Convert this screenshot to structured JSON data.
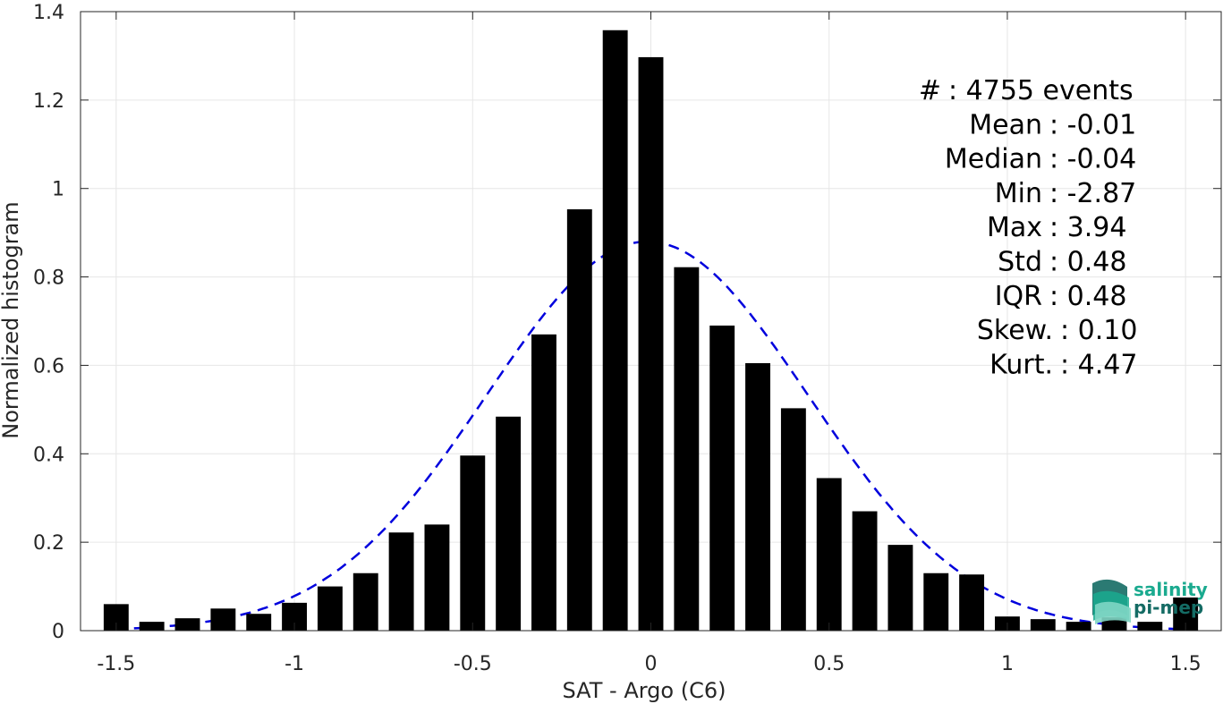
{
  "chart_data": {
    "type": "bar",
    "xlabel": "SAT - Argo (C6)",
    "ylabel": "Normalized histogram",
    "xlim": [
      -1.6,
      1.6
    ],
    "ylim": [
      0,
      1.4
    ],
    "xticks": [
      -1.5,
      -1,
      -0.5,
      0,
      0.5,
      1,
      1.5
    ],
    "xtick_labels": [
      "-1.5",
      "-1",
      "-0.5",
      "0",
      "0.5",
      "1",
      "1.5"
    ],
    "yticks": [
      0,
      0.2,
      0.4,
      0.6,
      0.8,
      1,
      1.2,
      1.4
    ],
    "ytick_labels": [
      "0",
      "0.2",
      "0.4",
      "0.6",
      "0.8",
      "1",
      "1.2",
      "1.4"
    ],
    "grid": true,
    "bin_width": 0.1,
    "bar_width": 0.07,
    "x": [
      -1.5,
      -1.4,
      -1.3,
      -1.2,
      -1.1,
      -1.0,
      -0.9,
      -0.8,
      -0.7,
      -0.6,
      -0.5,
      -0.4,
      -0.3,
      -0.2,
      -0.1,
      0.0,
      0.1,
      0.2,
      0.3,
      0.4,
      0.5,
      0.6,
      0.7,
      0.8,
      0.9,
      1.0,
      1.1,
      1.2,
      1.3,
      1.4,
      1.5
    ],
    "values": [
      0.06,
      0.02,
      0.028,
      0.05,
      0.038,
      0.063,
      0.1,
      0.13,
      0.222,
      0.24,
      0.396,
      0.484,
      0.67,
      0.953,
      1.358,
      1.297,
      0.822,
      0.69,
      0.605,
      0.503,
      0.345,
      0.27,
      0.194,
      0.13,
      0.127,
      0.032,
      0.026,
      0.02,
      0.03,
      0.02,
      0.075
    ],
    "bar_color": "#000000",
    "fit": {
      "type": "gaussian",
      "mean": -0.01,
      "std": 0.45,
      "peak": 0.88,
      "color": "#0000dd",
      "style": "dashed"
    },
    "stats": [
      {
        "label": "#  ",
        "value": ": 4755 events"
      },
      {
        "label": "Mean",
        "value": ": -0.01"
      },
      {
        "label": "Median",
        "value": ": -0.04"
      },
      {
        "label": "Min",
        "value": ": -2.87"
      },
      {
        "label": "Max",
        "value": ": 3.94"
      },
      {
        "label": "Std",
        "value": ": 0.48"
      },
      {
        "label": "IQR",
        "value": ": 0.48"
      },
      {
        "label": "Skew.",
        "value": ": 0.10"
      },
      {
        "label": "Kurt.",
        "value": ": 4.47"
      }
    ]
  },
  "logo": {
    "line1": "salinity",
    "line2": "pi-mep",
    "color_primary": "#1aaa8f",
    "color_dark": "#146b64"
  }
}
